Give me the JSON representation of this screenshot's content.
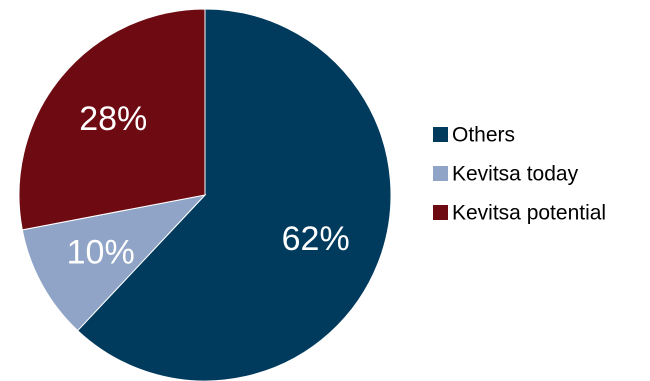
{
  "chart_data": {
    "type": "pie",
    "title": "",
    "slices": [
      {
        "name": "Others",
        "value": 62,
        "label": "62%",
        "color": "#003A5D"
      },
      {
        "name": "Kevitsa today",
        "value": 10,
        "label": "10%",
        "color": "#8FA4C6"
      },
      {
        "name": "Kevitsa potential",
        "value": 28,
        "label": "28%",
        "color": "#6E0A12"
      }
    ],
    "legend_position": "right",
    "start_angle": "12 o'clock",
    "direction": "clockwise"
  }
}
